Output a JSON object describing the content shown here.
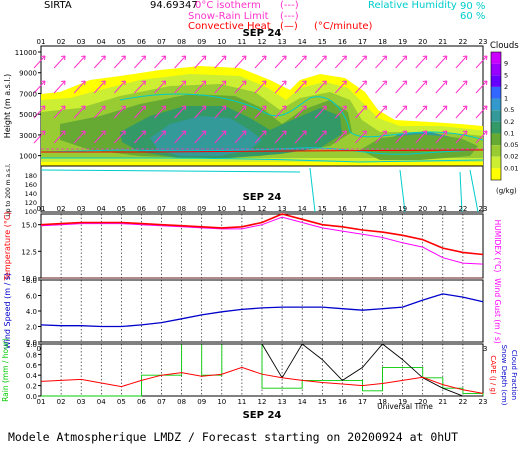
{
  "header": {
    "station": "SIRTA",
    "coords": "94.69347",
    "legend_left": [
      {
        "label": "0°C isotherm",
        "sym": "(---)",
        "color": "#ff33cc"
      },
      {
        "label": "Snow-Rain Limit",
        "sym": "(---)",
        "color": "#ff33cc"
      },
      {
        "label": "Convective Heat",
        "sym": "(—)",
        "unit": "(°C/minute)",
        "color": "#ff0000"
      }
    ],
    "legend_right": [
      {
        "label": "Relative Humidity",
        "value": "90 %",
        "color": "#00cccc"
      },
      {
        "label": "",
        "value": "60 %",
        "color": "#00cccc"
      }
    ]
  },
  "x_hours": [
    "01",
    "02",
    "03",
    "04",
    "05",
    "06",
    "07",
    "08",
    "09",
    "10",
    "11",
    "12",
    "13",
    "14",
    "15",
    "16",
    "17",
    "18",
    "19",
    "20",
    "21",
    "22",
    "23"
  ],
  "date_label": "SEP 24",
  "xlabel_bottom": "Universal Time",
  "footer": "Modele Atmospherique LMDZ / Forecast starting on 20200924 at 0hUT",
  "colors": {
    "temperature": "#ff0000",
    "humidex": "#ff00ff",
    "wind": "#0000cc",
    "rain": "#ff0000",
    "snow": "#00cc00",
    "cloud": "#000000"
  },
  "chart_data": [
    {
      "type": "heatmap",
      "panel": "cloud-height",
      "ylabel": "Height (m a.s.l.)",
      "y_ticks_upper": [
        11000,
        9000,
        7000,
        5000,
        3000,
        1000
      ],
      "ylabel_lower": "Up to 200 m a.s.l.",
      "y_ticks_lower": [
        180,
        160,
        140,
        120,
        100
      ],
      "colorbar": {
        "title": "Clouds",
        "unit": "(g/kg)",
        "ticks": [
          "9",
          "5",
          "2",
          "1",
          "0.5",
          "0.2",
          "0.1",
          "0.05",
          "0.02",
          "0.01"
        ],
        "colors": [
          "#cc00ff",
          "#9900ff",
          "#6600ff",
          "#3366ff",
          "#3399cc",
          "#339999",
          "#339966",
          "#66aa33",
          "#99cc33",
          "#ccee33",
          "#ffff00"
        ]
      },
      "cloud_levels": [
        0.01,
        0.05,
        0.2,
        0.5
      ],
      "wind_arrows": "upper-right direction, magenta"
    },
    {
      "type": "line",
      "panel": "temperature",
      "ylabel": "Temperature (°C)",
      "y2label": "HUMIDEX (°C)",
      "ylim": [
        10,
        16
      ],
      "y_ticks": [
        10.0,
        12.5,
        15.0
      ],
      "series": [
        {
          "name": "Temperature",
          "values": [
            15.0,
            15.1,
            15.2,
            15.2,
            15.2,
            15.1,
            15.0,
            14.9,
            14.8,
            14.7,
            14.8,
            15.2,
            16.0,
            15.5,
            15.0,
            14.8,
            14.5,
            14.3,
            14.0,
            13.6,
            12.8,
            12.4,
            12.2
          ]
        },
        {
          "name": "Humidex",
          "values": [
            14.9,
            15.0,
            15.1,
            15.1,
            15.1,
            15.0,
            14.9,
            14.8,
            14.7,
            14.6,
            14.6,
            15.0,
            15.7,
            15.2,
            14.7,
            14.4,
            14.1,
            13.8,
            13.3,
            12.9,
            11.9,
            11.4,
            11.3
          ]
        }
      ]
    },
    {
      "type": "line",
      "panel": "wind",
      "ylabel": "Wind Speed (m / s)",
      "y2label": "Wind Gust (m / s)",
      "ylim": [
        0,
        8
      ],
      "y_ticks": [
        0.0,
        2.0,
        4.0,
        6.0,
        8.0
      ],
      "series": [
        {
          "name": "Wind Speed",
          "values": [
            2.2,
            2.1,
            2.1,
            2.0,
            2.0,
            2.2,
            2.5,
            3.0,
            3.5,
            3.9,
            4.2,
            4.4,
            4.5,
            4.5,
            4.5,
            4.3,
            4.1,
            4.3,
            4.5,
            5.4,
            6.2,
            5.8,
            5.2
          ]
        }
      ]
    },
    {
      "type": "line",
      "panel": "precip",
      "ylabel": "Rain (mm / hour)",
      "y2label": "CAPE (J / g)",
      "y3label": "Snow Depth (cm)",
      "y4label": "Cloud Fraction",
      "ylim": [
        0,
        1
      ],
      "y_ticks": [
        0.0,
        0.2,
        0.4,
        0.6,
        0.8,
        1.0
      ],
      "series": [
        {
          "name": "Rain",
          "values": [
            0.28,
            0.3,
            0.32,
            0.25,
            0.18,
            0.3,
            0.4,
            0.45,
            0.38,
            0.42,
            0.55,
            0.42,
            0.35,
            0.3,
            0.26,
            0.23,
            0.2,
            0.24,
            0.3,
            0.36,
            0.22,
            0.12,
            0.05
          ]
        },
        {
          "name": "Snow",
          "values": [
            0,
            0,
            0,
            0,
            0,
            0.4,
            0.4,
            1.0,
            0.4,
            1.0,
            1.0,
            0.15,
            0.15,
            0.3,
            0.3,
            0.3,
            0.1,
            0.55,
            0.55,
            0.35,
            0.15,
            0.05,
            0
          ]
        },
        {
          "name": "Cloud",
          "values": [
            1,
            1,
            1,
            1,
            1,
            1,
            1,
            1,
            1,
            1,
            1,
            1,
            0.35,
            1,
            0.7,
            0.3,
            0.55,
            1,
            0.7,
            0.35,
            0.15,
            0,
            0
          ]
        }
      ]
    }
  ]
}
